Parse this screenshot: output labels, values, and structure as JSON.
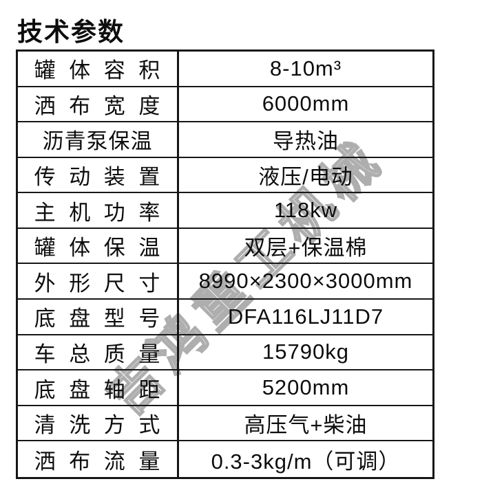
{
  "page": {
    "title": "技术参数"
  },
  "watermark": {
    "text": "吉鸿重工机械"
  },
  "colors": {
    "background": "#ffffff",
    "text": "#0d0d0d",
    "border": "#161616",
    "watermark": "#acacac"
  },
  "table": {
    "rows": [
      {
        "label": "罐 体 容 积",
        "value": "8-10m³"
      },
      {
        "label": "洒 布 宽 度",
        "value": "6000mm"
      },
      {
        "label": "沥青泵保温",
        "value": "导热油"
      },
      {
        "label": "传 动 装 置",
        "value": "液压/电动"
      },
      {
        "label": "主 机 功 率",
        "value": "118kw"
      },
      {
        "label": "罐 体 保 温",
        "value": "双层+保温棉"
      },
      {
        "label": "外 形 尺 寸",
        "value": "8990×2300×3000mm"
      },
      {
        "label": "底 盘 型 号",
        "value": "DFA116LJ11D7"
      },
      {
        "label": "车 总 质 量",
        "value": "15790kg"
      },
      {
        "label": "底 盘 轴 距",
        "value": "5200mm"
      },
      {
        "label": "清 洗 方 式",
        "value": "高压气+柴油"
      },
      {
        "label": "洒 布 流 量",
        "value": "0.3-3kg/m（可调）"
      }
    ]
  }
}
